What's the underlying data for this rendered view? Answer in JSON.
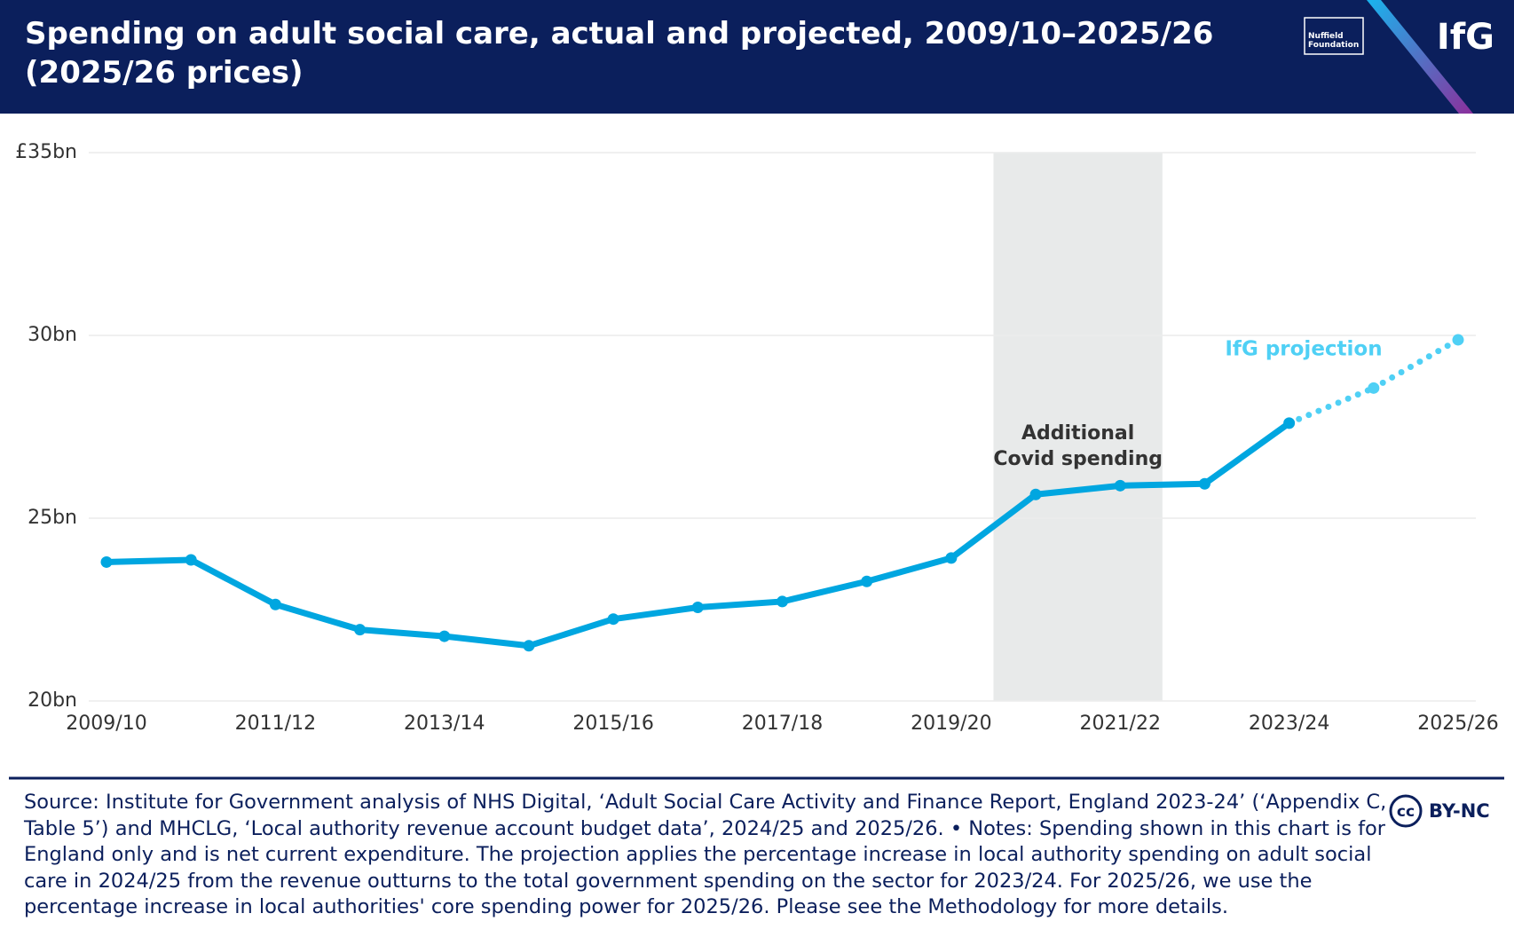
{
  "chart_data": {
    "type": "line",
    "title": "Spending on adult social care, actual and projected, 2009/10–2025/26 (2025/26 prices)",
    "brand": "IfG",
    "partner": "Nuffield Foundation",
    "license_icon": "cc",
    "license": "BY-NC",
    "footnote": "Source: Institute for Government analysis of NHS Digital, ‘Adult Social Care Activity and Finance Report, England 2023-24’ (‘Appendix C, Table 5’) and MHCLG, ‘Local authority revenue account budget data’, 2024/25 and 2025/26. • Notes: Spending shown in this chart is for England only and is net current expenditure. The projection applies the percentage increase in local authority spending on adult social care in 2024/25 from the revenue outturns to the total government spending on the sector for 2023/24. For 2025/26, we use the percentage increase in local authorities' core spending power for 2025/26. Please see the Methodology for more details.",
    "categories": [
      "2009/10",
      null,
      "2011/12",
      null,
      "2013/14",
      null,
      "2015/16",
      null,
      "2017/18",
      null,
      "2019/20",
      null,
      "2021/22",
      null,
      "2023/24",
      null,
      "2025/26"
    ],
    "series": [
      {
        "color": "#00a6e0",
        "style": "solid",
        "values": [
          23.8,
          23.86,
          22.64,
          21.95,
          21.77,
          21.51,
          22.24,
          22.56,
          22.72,
          23.27,
          23.91,
          25.65,
          25.89,
          25.94,
          27.6,
          null,
          null
        ]
      },
      {
        "name": "IfG projection",
        "color": "#4fd0f5",
        "style": "dotted",
        "values": [
          null,
          null,
          null,
          null,
          null,
          null,
          null,
          null,
          null,
          null,
          null,
          null,
          null,
          null,
          null,
          28.56,
          29.88
        ]
      }
    ],
    "highlight": {
      "label": "Additional Covid spending",
      "start": 11,
      "end": 12,
      "color": "#e8eaea"
    },
    "ylim": [
      20,
      35
    ],
    "yticks": [
      {
        "value": 20,
        "label": "20bn"
      },
      {
        "value": 25,
        "label": "25bn"
      },
      {
        "value": 30,
        "label": "30bn"
      },
      {
        "value": 35,
        "label": "£35bn"
      }
    ],
    "grid": true
  }
}
